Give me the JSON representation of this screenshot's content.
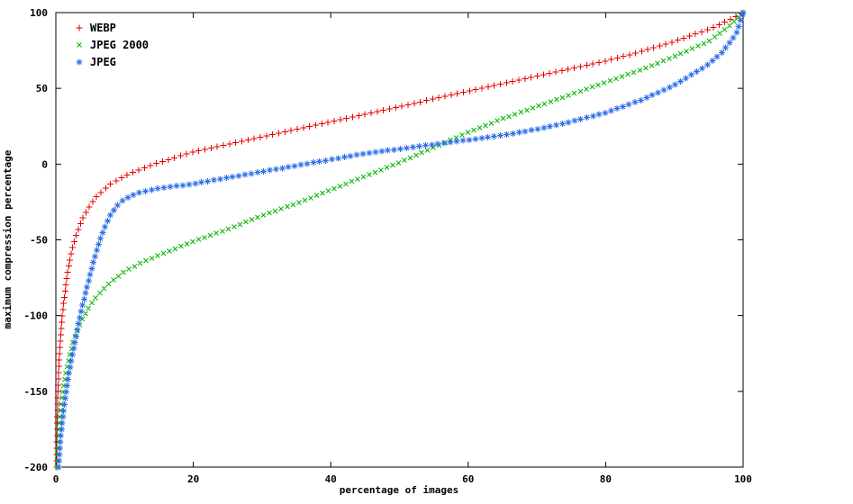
{
  "figure": {
    "background": "#ffffff",
    "border_color": "#000000"
  },
  "chart_data": {
    "type": "scatter",
    "title": "",
    "xlabel": "percentage of images",
    "ylabel": "maximum compression percentage",
    "xlim": [
      0,
      100
    ],
    "ylim": [
      -200,
      100
    ],
    "xticks": [
      0,
      20,
      40,
      60,
      80,
      100
    ],
    "yticks": [
      -200,
      -150,
      -100,
      -50,
      0,
      50,
      100
    ],
    "grid": false,
    "legend_position": "top-left",
    "series": [
      {
        "name": "WEBP",
        "color": "#e60000",
        "marker": "plus",
        "points": [
          [
            0.1,
            -200
          ],
          [
            0.2,
            -170
          ],
          [
            0.3,
            -150
          ],
          [
            0.5,
            -128
          ],
          [
            0.8,
            -108
          ],
          [
            1,
            -97
          ],
          [
            1.5,
            -78
          ],
          [
            2,
            -64
          ],
          [
            2.5,
            -54
          ],
          [
            3,
            -46
          ],
          [
            4,
            -35
          ],
          [
            5,
            -27
          ],
          [
            6,
            -21
          ],
          [
            7,
            -17
          ],
          [
            8,
            -13
          ],
          [
            10,
            -8
          ],
          [
            12,
            -4
          ],
          [
            15,
            1
          ],
          [
            20,
            8
          ],
          [
            25,
            13
          ],
          [
            30,
            18
          ],
          [
            35,
            23
          ],
          [
            40,
            28
          ],
          [
            45,
            33
          ],
          [
            50,
            38
          ],
          [
            55,
            43
          ],
          [
            60,
            48
          ],
          [
            65,
            53
          ],
          [
            70,
            58
          ],
          [
            75,
            63
          ],
          [
            80,
            68
          ],
          [
            85,
            74
          ],
          [
            90,
            81
          ],
          [
            95,
            89
          ],
          [
            98,
            95
          ],
          [
            100,
            100
          ]
        ]
      },
      {
        "name": "JPEG 2000",
        "color": "#00b400",
        "marker": "cross",
        "points": [
          [
            0.2,
            -200
          ],
          [
            0.3,
            -185
          ],
          [
            0.5,
            -172
          ],
          [
            0.8,
            -158
          ],
          [
            1,
            -150
          ],
          [
            1.5,
            -136
          ],
          [
            2,
            -126
          ],
          [
            2.5,
            -118
          ],
          [
            3,
            -111
          ],
          [
            4,
            -101
          ],
          [
            5,
            -93
          ],
          [
            6,
            -87
          ],
          [
            7,
            -82
          ],
          [
            8,
            -78
          ],
          [
            10,
            -71
          ],
          [
            12,
            -66
          ],
          [
            15,
            -60
          ],
          [
            20,
            -51
          ],
          [
            25,
            -43
          ],
          [
            30,
            -34
          ],
          [
            35,
            -26
          ],
          [
            40,
            -17
          ],
          [
            45,
            -8
          ],
          [
            50,
            1
          ],
          [
            53,
            7
          ],
          [
            55,
            11
          ],
          [
            60,
            21
          ],
          [
            65,
            30
          ],
          [
            70,
            38
          ],
          [
            75,
            46
          ],
          [
            80,
            54
          ],
          [
            85,
            62
          ],
          [
            90,
            71
          ],
          [
            95,
            81
          ],
          [
            98,
            91
          ],
          [
            100,
            100
          ]
        ]
      },
      {
        "name": "JPEG",
        "color": "#2e6fe8",
        "marker": "asterisk",
        "points": [
          [
            0.4,
            -200
          ],
          [
            0.5,
            -192
          ],
          [
            0.7,
            -180
          ],
          [
            1,
            -168
          ],
          [
            1.3,
            -157
          ],
          [
            1.6,
            -147
          ],
          [
            2,
            -136
          ],
          [
            2.5,
            -124
          ],
          [
            3,
            -112
          ],
          [
            3.5,
            -101
          ],
          [
            4,
            -91
          ],
          [
            4.5,
            -82
          ],
          [
            5,
            -73
          ],
          [
            5.5,
            -64
          ],
          [
            6,
            -56
          ],
          [
            6.5,
            -49
          ],
          [
            7,
            -43
          ],
          [
            7.5,
            -38
          ],
          [
            8,
            -33
          ],
          [
            9,
            -27
          ],
          [
            10,
            -23
          ],
          [
            12,
            -19
          ],
          [
            15,
            -16
          ],
          [
            20,
            -13
          ],
          [
            25,
            -9
          ],
          [
            30,
            -5
          ],
          [
            35,
            -1
          ],
          [
            40,
            3
          ],
          [
            45,
            7
          ],
          [
            50,
            10
          ],
          [
            55,
            13
          ],
          [
            60,
            16
          ],
          [
            65,
            19
          ],
          [
            70,
            23
          ],
          [
            75,
            28
          ],
          [
            80,
            34
          ],
          [
            85,
            42
          ],
          [
            90,
            52
          ],
          [
            95,
            66
          ],
          [
            97,
            74
          ],
          [
            99,
            86
          ],
          [
            100,
            100
          ]
        ]
      }
    ]
  }
}
